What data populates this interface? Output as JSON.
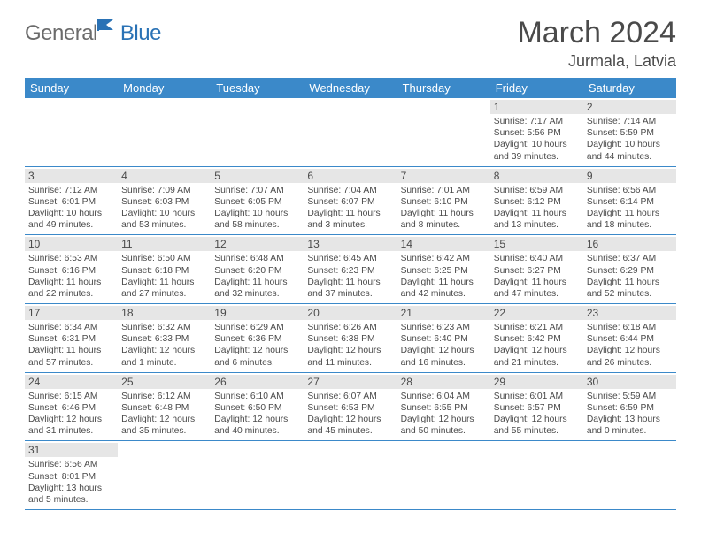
{
  "logo": {
    "general": "General",
    "blue": "Blue"
  },
  "title": "March 2024",
  "location": "Jurmala, Latvia",
  "weekdays": [
    "Sunday",
    "Monday",
    "Tuesday",
    "Wednesday",
    "Thursday",
    "Friday",
    "Saturday"
  ],
  "colors": {
    "header_bg": "#3b89c9",
    "header_fg": "#ffffff",
    "daynum_bg": "#e6e6e6",
    "text": "#4a4a4a",
    "logo_gray": "#6b6b6b",
    "logo_blue": "#2a72b5",
    "row_border": "#3b89c9"
  },
  "weeks": [
    [
      {
        "n": "",
        "sr": "",
        "ss": "",
        "dl": ""
      },
      {
        "n": "",
        "sr": "",
        "ss": "",
        "dl": ""
      },
      {
        "n": "",
        "sr": "",
        "ss": "",
        "dl": ""
      },
      {
        "n": "",
        "sr": "",
        "ss": "",
        "dl": ""
      },
      {
        "n": "",
        "sr": "",
        "ss": "",
        "dl": ""
      },
      {
        "n": "1",
        "sr": "Sunrise: 7:17 AM",
        "ss": "Sunset: 5:56 PM",
        "dl": "Daylight: 10 hours and 39 minutes."
      },
      {
        "n": "2",
        "sr": "Sunrise: 7:14 AM",
        "ss": "Sunset: 5:59 PM",
        "dl": "Daylight: 10 hours and 44 minutes."
      }
    ],
    [
      {
        "n": "3",
        "sr": "Sunrise: 7:12 AM",
        "ss": "Sunset: 6:01 PM",
        "dl": "Daylight: 10 hours and 49 minutes."
      },
      {
        "n": "4",
        "sr": "Sunrise: 7:09 AM",
        "ss": "Sunset: 6:03 PM",
        "dl": "Daylight: 10 hours and 53 minutes."
      },
      {
        "n": "5",
        "sr": "Sunrise: 7:07 AM",
        "ss": "Sunset: 6:05 PM",
        "dl": "Daylight: 10 hours and 58 minutes."
      },
      {
        "n": "6",
        "sr": "Sunrise: 7:04 AM",
        "ss": "Sunset: 6:07 PM",
        "dl": "Daylight: 11 hours and 3 minutes."
      },
      {
        "n": "7",
        "sr": "Sunrise: 7:01 AM",
        "ss": "Sunset: 6:10 PM",
        "dl": "Daylight: 11 hours and 8 minutes."
      },
      {
        "n": "8",
        "sr": "Sunrise: 6:59 AM",
        "ss": "Sunset: 6:12 PM",
        "dl": "Daylight: 11 hours and 13 minutes."
      },
      {
        "n": "9",
        "sr": "Sunrise: 6:56 AM",
        "ss": "Sunset: 6:14 PM",
        "dl": "Daylight: 11 hours and 18 minutes."
      }
    ],
    [
      {
        "n": "10",
        "sr": "Sunrise: 6:53 AM",
        "ss": "Sunset: 6:16 PM",
        "dl": "Daylight: 11 hours and 22 minutes."
      },
      {
        "n": "11",
        "sr": "Sunrise: 6:50 AM",
        "ss": "Sunset: 6:18 PM",
        "dl": "Daylight: 11 hours and 27 minutes."
      },
      {
        "n": "12",
        "sr": "Sunrise: 6:48 AM",
        "ss": "Sunset: 6:20 PM",
        "dl": "Daylight: 11 hours and 32 minutes."
      },
      {
        "n": "13",
        "sr": "Sunrise: 6:45 AM",
        "ss": "Sunset: 6:23 PM",
        "dl": "Daylight: 11 hours and 37 minutes."
      },
      {
        "n": "14",
        "sr": "Sunrise: 6:42 AM",
        "ss": "Sunset: 6:25 PM",
        "dl": "Daylight: 11 hours and 42 minutes."
      },
      {
        "n": "15",
        "sr": "Sunrise: 6:40 AM",
        "ss": "Sunset: 6:27 PM",
        "dl": "Daylight: 11 hours and 47 minutes."
      },
      {
        "n": "16",
        "sr": "Sunrise: 6:37 AM",
        "ss": "Sunset: 6:29 PM",
        "dl": "Daylight: 11 hours and 52 minutes."
      }
    ],
    [
      {
        "n": "17",
        "sr": "Sunrise: 6:34 AM",
        "ss": "Sunset: 6:31 PM",
        "dl": "Daylight: 11 hours and 57 minutes."
      },
      {
        "n": "18",
        "sr": "Sunrise: 6:32 AM",
        "ss": "Sunset: 6:33 PM",
        "dl": "Daylight: 12 hours and 1 minute."
      },
      {
        "n": "19",
        "sr": "Sunrise: 6:29 AM",
        "ss": "Sunset: 6:36 PM",
        "dl": "Daylight: 12 hours and 6 minutes."
      },
      {
        "n": "20",
        "sr": "Sunrise: 6:26 AM",
        "ss": "Sunset: 6:38 PM",
        "dl": "Daylight: 12 hours and 11 minutes."
      },
      {
        "n": "21",
        "sr": "Sunrise: 6:23 AM",
        "ss": "Sunset: 6:40 PM",
        "dl": "Daylight: 12 hours and 16 minutes."
      },
      {
        "n": "22",
        "sr": "Sunrise: 6:21 AM",
        "ss": "Sunset: 6:42 PM",
        "dl": "Daylight: 12 hours and 21 minutes."
      },
      {
        "n": "23",
        "sr": "Sunrise: 6:18 AM",
        "ss": "Sunset: 6:44 PM",
        "dl": "Daylight: 12 hours and 26 minutes."
      }
    ],
    [
      {
        "n": "24",
        "sr": "Sunrise: 6:15 AM",
        "ss": "Sunset: 6:46 PM",
        "dl": "Daylight: 12 hours and 31 minutes."
      },
      {
        "n": "25",
        "sr": "Sunrise: 6:12 AM",
        "ss": "Sunset: 6:48 PM",
        "dl": "Daylight: 12 hours and 35 minutes."
      },
      {
        "n": "26",
        "sr": "Sunrise: 6:10 AM",
        "ss": "Sunset: 6:50 PM",
        "dl": "Daylight: 12 hours and 40 minutes."
      },
      {
        "n": "27",
        "sr": "Sunrise: 6:07 AM",
        "ss": "Sunset: 6:53 PM",
        "dl": "Daylight: 12 hours and 45 minutes."
      },
      {
        "n": "28",
        "sr": "Sunrise: 6:04 AM",
        "ss": "Sunset: 6:55 PM",
        "dl": "Daylight: 12 hours and 50 minutes."
      },
      {
        "n": "29",
        "sr": "Sunrise: 6:01 AM",
        "ss": "Sunset: 6:57 PM",
        "dl": "Daylight: 12 hours and 55 minutes."
      },
      {
        "n": "30",
        "sr": "Sunrise: 5:59 AM",
        "ss": "Sunset: 6:59 PM",
        "dl": "Daylight: 13 hours and 0 minutes."
      }
    ],
    [
      {
        "n": "31",
        "sr": "Sunrise: 6:56 AM",
        "ss": "Sunset: 8:01 PM",
        "dl": "Daylight: 13 hours and 5 minutes."
      },
      {
        "n": "",
        "sr": "",
        "ss": "",
        "dl": ""
      },
      {
        "n": "",
        "sr": "",
        "ss": "",
        "dl": ""
      },
      {
        "n": "",
        "sr": "",
        "ss": "",
        "dl": ""
      },
      {
        "n": "",
        "sr": "",
        "ss": "",
        "dl": ""
      },
      {
        "n": "",
        "sr": "",
        "ss": "",
        "dl": ""
      },
      {
        "n": "",
        "sr": "",
        "ss": "",
        "dl": ""
      }
    ]
  ]
}
